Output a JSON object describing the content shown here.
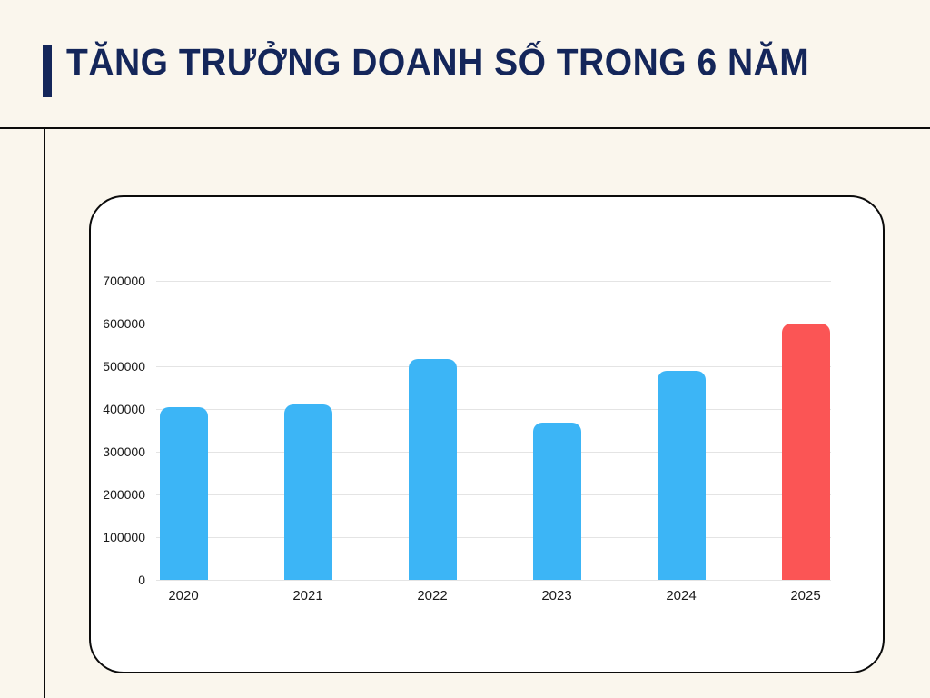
{
  "page": {
    "background_color": "#FAF6ED",
    "rule_color": "#0B0B0B"
  },
  "header": {
    "title": "TĂNG TRƯỞNG DOANH SỐ TRONG 6 NĂM",
    "title_color": "#14265A",
    "accent_color": "#14265A"
  },
  "chart_data": {
    "type": "bar",
    "title": "TĂNG TRƯỞNG DOANH SỐ TRONG 6 NĂM",
    "categories": [
      "2020",
      "2021",
      "2022",
      "2023",
      "2024",
      "2025"
    ],
    "values": [
      405000,
      410000,
      518000,
      368000,
      490000,
      600000
    ],
    "bar_colors": [
      "#3CB5F6",
      "#3CB5F6",
      "#3CB5F6",
      "#3CB5F6",
      "#3CB5F6",
      "#FB5555"
    ],
    "default_bar_color": "#3CB5F6",
    "highlight_bar_color": "#FB5555",
    "highlight_index": 5,
    "xlabel": "",
    "ylabel": "",
    "ylim": [
      0,
      700000
    ],
    "yticks": [
      0,
      100000,
      200000,
      300000,
      400000,
      500000,
      600000,
      700000
    ],
    "ytick_labels": [
      "0",
      "100000",
      "200000",
      "300000",
      "400000",
      "500000",
      "600000",
      "700000"
    ],
    "grid": true,
    "gridline_color": "#E4E4E4",
    "legend": false
  }
}
